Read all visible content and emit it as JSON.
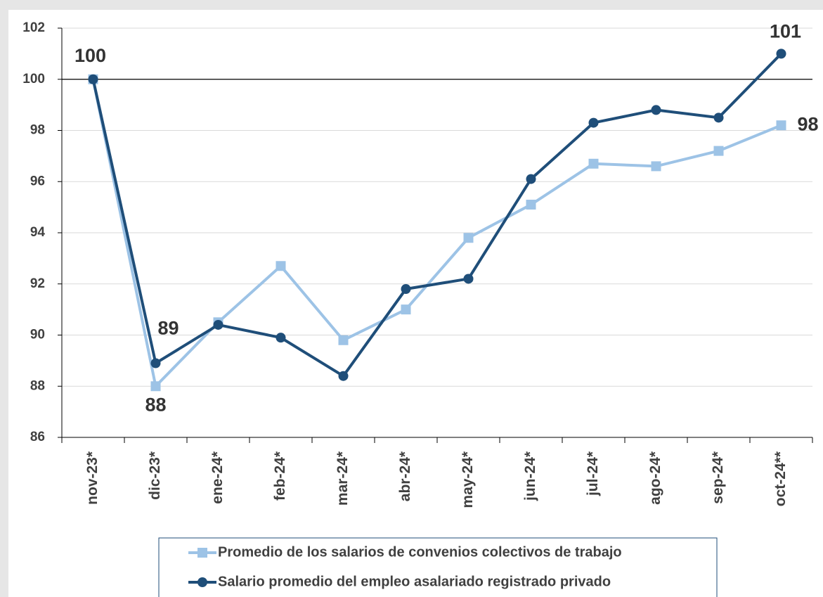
{
  "chart_data": {
    "type": "line",
    "categories": [
      "nov-23*",
      "dic-23*",
      "ene-24*",
      "feb-24*",
      "mar-24*",
      "abr-24*",
      "may-24*",
      "jun-24*",
      "jul-24*",
      "ago-24*",
      "sep-24*",
      "oct-24**"
    ],
    "series": [
      {
        "name": "Promedio de los salarios de convenios colectivos de trabajo",
        "color": "#9dc3e6",
        "marker": "square",
        "values": [
          100,
          88,
          90.5,
          92.7,
          89.8,
          91.0,
          93.8,
          95.1,
          96.7,
          96.6,
          97.2,
          98.2
        ],
        "value_labels": [
          null,
          "88",
          null,
          null,
          null,
          null,
          null,
          null,
          null,
          null,
          null,
          "98"
        ]
      },
      {
        "name": "Salario promedio del empleo asalariado registrado privado",
        "color": "#1f4e79",
        "marker": "circle",
        "values": [
          100,
          88.9,
          90.4,
          89.9,
          88.4,
          91.8,
          92.2,
          96.1,
          98.3,
          98.8,
          98.5,
          101
        ],
        "value_labels": [
          "100",
          "89",
          null,
          null,
          null,
          null,
          null,
          null,
          null,
          null,
          null,
          "101"
        ]
      }
    ],
    "ylim": [
      86,
      102
    ],
    "yticks": [
      86,
      88,
      90,
      92,
      94,
      96,
      98,
      100,
      102
    ],
    "grid": true,
    "reference_line": 100,
    "legend": "bottom"
  }
}
